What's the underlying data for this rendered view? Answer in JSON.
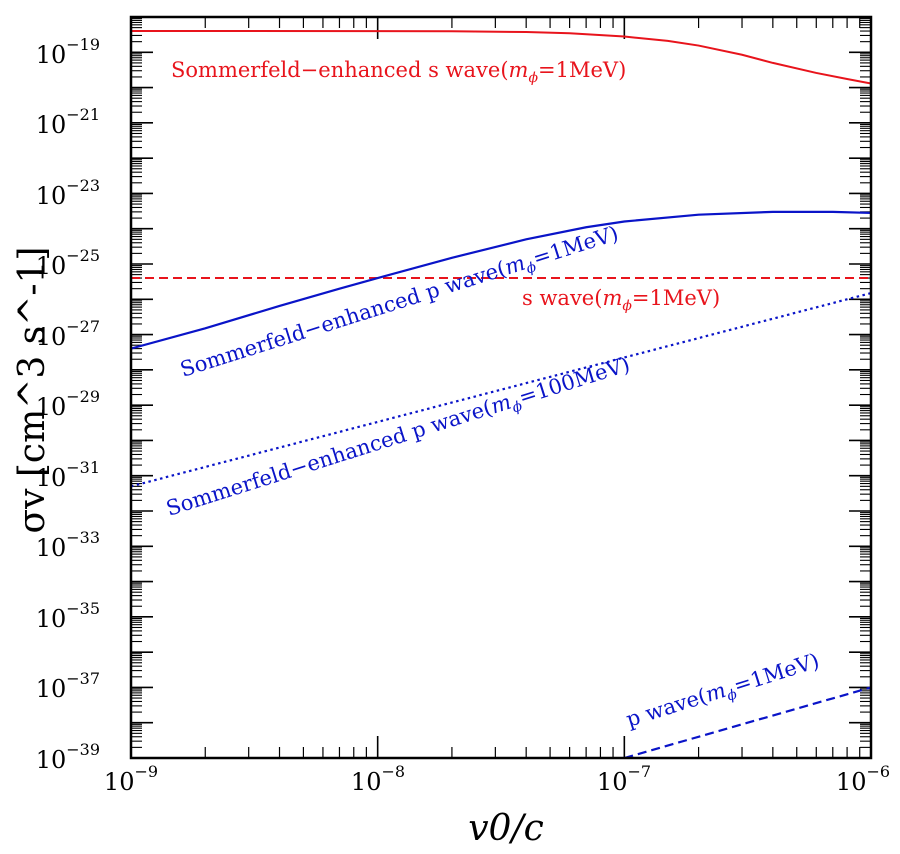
{
  "chart_data": {
    "type": "line",
    "title": "",
    "xlabel": "v0/c",
    "ylabel": "σv [cm^3 s^-1]",
    "x_scale": "log",
    "y_scale": "log",
    "xlim": [
      1e-09,
      1e-06
    ],
    "ylim": [
      1e-39,
      1e-18
    ],
    "x_ticks": [
      {
        "value": 1e-09,
        "base": "10",
        "exp": "−9"
      },
      {
        "value": 1e-08,
        "base": "10",
        "exp": "−8"
      },
      {
        "value": 1e-07,
        "base": "10",
        "exp": "−7"
      },
      {
        "value": 1e-06,
        "base": "10",
        "exp": "−6"
      }
    ],
    "y_ticks": [
      {
        "value": 1e-19,
        "base": "10",
        "exp": "−19"
      },
      {
        "value": 1e-21,
        "base": "10",
        "exp": "−21"
      },
      {
        "value": 1e-23,
        "base": "10",
        "exp": "−23"
      },
      {
        "value": 1e-25,
        "base": "10",
        "exp": "−25"
      },
      {
        "value": 1e-27,
        "base": "10",
        "exp": "−27"
      },
      {
        "value": 1e-29,
        "base": "10",
        "exp": "−29"
      },
      {
        "value": 1e-31,
        "base": "10",
        "exp": "−31"
      },
      {
        "value": 1e-33,
        "base": "10",
        "exp": "−33"
      },
      {
        "value": 1e-35,
        "base": "10",
        "exp": "−35"
      },
      {
        "value": 1e-37,
        "base": "10",
        "exp": "−37"
      },
      {
        "value": 1e-39,
        "base": "10",
        "exp": "−39"
      }
    ],
    "series": [
      {
        "name": "Sommerfeld-enhanced s wave (m_phi=1MeV)",
        "label_main": "Sommerfeld−enhanced s wave(",
        "label_sym": "m",
        "label_sub": "ϕ",
        "label_tail": "=1MeV)",
        "color": "#e8141c",
        "dash": "solid",
        "x": [
          1e-09,
          3e-09,
          1e-08,
          2e-08,
          4e-08,
          6e-08,
          1e-07,
          1.5e-07,
          2e-07,
          3e-07,
          4e-07,
          6e-07,
          8e-07,
          1e-06
        ],
        "y": [
          4e-19,
          4e-19,
          3.98e-19,
          3.93e-19,
          3.75e-19,
          3.45e-19,
          2.8e-19,
          2.1e-19,
          1.55e-19,
          8.5e-20,
          5e-20,
          2.6e-20,
          1.75e-20,
          1.3e-20
        ]
      },
      {
        "name": "s wave (m_phi=1MeV)",
        "label_main": "s wave(",
        "label_sym": "m",
        "label_sub": "ϕ",
        "label_tail": "=1MeV)",
        "color": "#e8141c",
        "dash": "dashed",
        "x": [
          1e-09,
          1e-06
        ],
        "y": [
          4e-26,
          4e-26
        ]
      },
      {
        "name": "Sommerfeld-enhanced p wave (m_phi=1MeV)",
        "label_main": "Sommerfeld−enhanced p wave(",
        "label_sym": "m",
        "label_sub": "ϕ",
        "label_tail": "=1MeV)",
        "color": "#0a14c8",
        "dash": "solid",
        "x": [
          1e-09,
          2e-09,
          4e-09,
          7e-09,
          1e-08,
          2e-08,
          4e-08,
          7e-08,
          1e-07,
          2e-07,
          4e-07,
          7e-07,
          1e-06
        ],
        "y": [
          4e-28,
          1.5e-27,
          6.5e-27,
          2e-26,
          4e-26,
          1.5e-25,
          5e-25,
          1.1e-24,
          1.6e-24,
          2.5e-24,
          3e-24,
          3e-24,
          2.8e-24
        ]
      },
      {
        "name": "Sommerfeld-enhanced p wave (m_phi=100MeV)",
        "label_main": "Sommerfeld−enhanced p wave(",
        "label_sym": "m",
        "label_sub": "ϕ",
        "label_tail": "=100MeV)",
        "color": "#0a14c8",
        "dash": "dotted",
        "x": [
          1e-09,
          1e-06
        ],
        "y": [
          5e-32,
          1.5e-26
        ]
      },
      {
        "name": "p wave (m_phi=1MeV)",
        "label_main": "p wave(",
        "label_sym": "m",
        "label_sub": "ϕ",
        "label_tail": "=1MeV)",
        "color": "#0a14c8",
        "dash": "dashed",
        "x": [
          1e-07,
          1e-06
        ],
        "y": [
          1e-39,
          1e-37
        ]
      }
    ]
  }
}
